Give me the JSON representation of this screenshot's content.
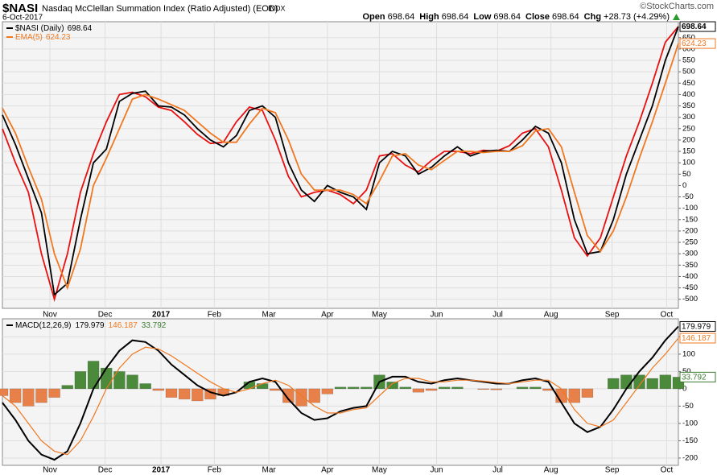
{
  "header": {
    "symbol": "$NASI",
    "description": "Nasdaq McClellan Summation Index (Ratio Adjusted) (EOD)",
    "exchange": "INDX",
    "date": "6-Oct-2017",
    "copyright": "©StockCharts.com",
    "quote": [
      {
        "label": "Open",
        "value": 698.64
      },
      {
        "label": "High",
        "value": 698.64
      },
      {
        "label": "Low",
        "value": 698.64
      },
      {
        "label": "Close",
        "value": 698.64
      },
      {
        "label": "Chg",
        "value": "+28.73 (+4.29%)"
      }
    ]
  },
  "chart_data": [
    {
      "type": "line",
      "xlim": [
        0,
        52
      ],
      "ylim": [
        -540,
        720
      ],
      "x": [
        0,
        1,
        2,
        3,
        4,
        5,
        6,
        7,
        8,
        9,
        10,
        11,
        12,
        13,
        14,
        15,
        16,
        17,
        18,
        19,
        20,
        21,
        22,
        23,
        24,
        25,
        26,
        27,
        28,
        29,
        30,
        31,
        32,
        33,
        34,
        35,
        36,
        37,
        38,
        39,
        40,
        41,
        42,
        43,
        44,
        45,
        46,
        47,
        48,
        49,
        50,
        51,
        52
      ],
      "xticks": [
        {
          "value": 3.65,
          "label": "Nov"
        },
        {
          "value": 7.9,
          "label": "Dec"
        },
        {
          "value": 12.2,
          "label": "2017",
          "bold": true
        },
        {
          "value": 16.3,
          "label": "Feb"
        },
        {
          "value": 20.5,
          "label": "Mar"
        },
        {
          "value": 25,
          "label": "Apr"
        },
        {
          "value": 29,
          "label": "May"
        },
        {
          "value": 33.4,
          "label": "Jun"
        },
        {
          "value": 38.1,
          "label": "Jul"
        },
        {
          "value": 42.2,
          "label": "Aug"
        },
        {
          "value": 46.9,
          "label": "Sep"
        },
        {
          "value": 51.1,
          "label": "Oct"
        }
      ],
      "yticks": [
        -500,
        -450,
        -400,
        -350,
        -300,
        -250,
        -200,
        -150,
        -100,
        -50,
        0,
        50,
        100,
        150,
        200,
        250,
        300,
        350,
        400,
        450,
        500,
        550,
        600,
        650
      ],
      "grid": true,
      "series": [
        {
          "color": "#e81010",
          "values": [
            250,
            100,
            -30,
            -300,
            -500,
            -300,
            -30,
            140,
            280,
            400,
            410,
            390,
            345,
            330,
            280,
            225,
            185,
            190,
            280,
            345,
            330,
            200,
            40,
            -50,
            -30,
            -20,
            -40,
            -80,
            -20,
            130,
            140,
            90,
            60,
            110,
            150,
            150,
            140,
            155,
            150,
            175,
            230,
            250,
            170,
            -20,
            -230,
            -310,
            -230,
            -50,
            130,
            280,
            450,
            630,
            698.64
          ]
        },
        {
          "name": "$NASI (Daily)",
          "color": "#000000",
          "tag": true,
          "values": [
            310,
            180,
            30,
            -120,
            -480,
            -430,
            -150,
            100,
            160,
            370,
            405,
            415,
            350,
            345,
            310,
            250,
            200,
            170,
            220,
            330,
            350,
            300,
            100,
            -20,
            -70,
            0,
            -30,
            -50,
            -105,
            100,
            150,
            130,
            50,
            80,
            130,
            170,
            130,
            150,
            155,
            150,
            200,
            260,
            230,
            100,
            -150,
            -300,
            -290,
            -150,
            50,
            200,
            350,
            550,
            698.64
          ]
        },
        {
          "name": "EMA(5)",
          "color": "#f07820",
          "tag": true,
          "values": [
            340,
            230,
            80,
            -60,
            -300,
            -450,
            -280,
            0,
            120,
            250,
            380,
            400,
            380,
            355,
            330,
            280,
            230,
            190,
            190,
            270,
            340,
            320,
            200,
            50,
            -20,
            -20,
            -20,
            -40,
            -80,
            20,
            130,
            140,
            90,
            70,
            110,
            150,
            150,
            145,
            150,
            150,
            175,
            240,
            250,
            170,
            -30,
            -220,
            -290,
            -200,
            -50,
            120,
            280,
            450,
            624.23
          ]
        }
      ]
    },
    {
      "type": "macd",
      "xlim": [
        0,
        52
      ],
      "ylim": [
        -221,
        202
      ],
      "yticks": [
        -200,
        -150,
        -100,
        -50,
        0,
        50,
        100,
        150
      ],
      "grid": true,
      "positive_color": "#4a8a3a",
      "negative_color": "#e8804a",
      "series": [
        {
          "kind": "histogram",
          "color": "#3d7a30",
          "tag": true,
          "values": [
            -20,
            -40,
            -50,
            -40,
            -25,
            10,
            50,
            80,
            60,
            50,
            40,
            15,
            -5,
            -25,
            -30,
            -35,
            -30,
            -20,
            0,
            20,
            15,
            -5,
            -40,
            -50,
            -40,
            -15,
            5,
            5,
            5,
            40,
            20,
            5,
            -10,
            -5,
            5,
            5,
            0,
            -2,
            -3,
            0,
            5,
            5,
            -5,
            -40,
            -40,
            -25,
            0,
            30,
            40,
            40,
            30,
            40,
            33.792
          ]
        },
        {
          "kind": "line",
          "name": "MACD(12,26,9)",
          "color": "#000000",
          "tag": true,
          "values": [
            -40,
            -90,
            -150,
            -190,
            -205,
            -180,
            -100,
            0,
            60,
            110,
            140,
            135,
            110,
            70,
            40,
            10,
            -10,
            -20,
            -10,
            20,
            30,
            20,
            -30,
            -70,
            -90,
            -85,
            -65,
            -55,
            -50,
            20,
            35,
            35,
            20,
            15,
            25,
            30,
            25,
            20,
            15,
            15,
            25,
            30,
            20,
            -40,
            -100,
            -125,
            -110,
            -60,
            0,
            50,
            90,
            140,
            179.979
          ]
        },
        {
          "kind": "line",
          "color": "#f07820",
          "tag": true,
          "values": [
            -20,
            -50,
            -100,
            -150,
            -180,
            -190,
            -150,
            -80,
            0,
            60,
            100,
            120,
            115,
            95,
            70,
            45,
            20,
            0,
            -10,
            0,
            15,
            25,
            10,
            -20,
            -50,
            -70,
            -70,
            -60,
            -55,
            -20,
            15,
            30,
            30,
            20,
            20,
            25,
            25,
            22,
            18,
            15,
            20,
            25,
            25,
            0,
            -60,
            -100,
            -110,
            -90,
            -40,
            10,
            60,
            100,
            146.187
          ]
        }
      ]
    }
  ]
}
